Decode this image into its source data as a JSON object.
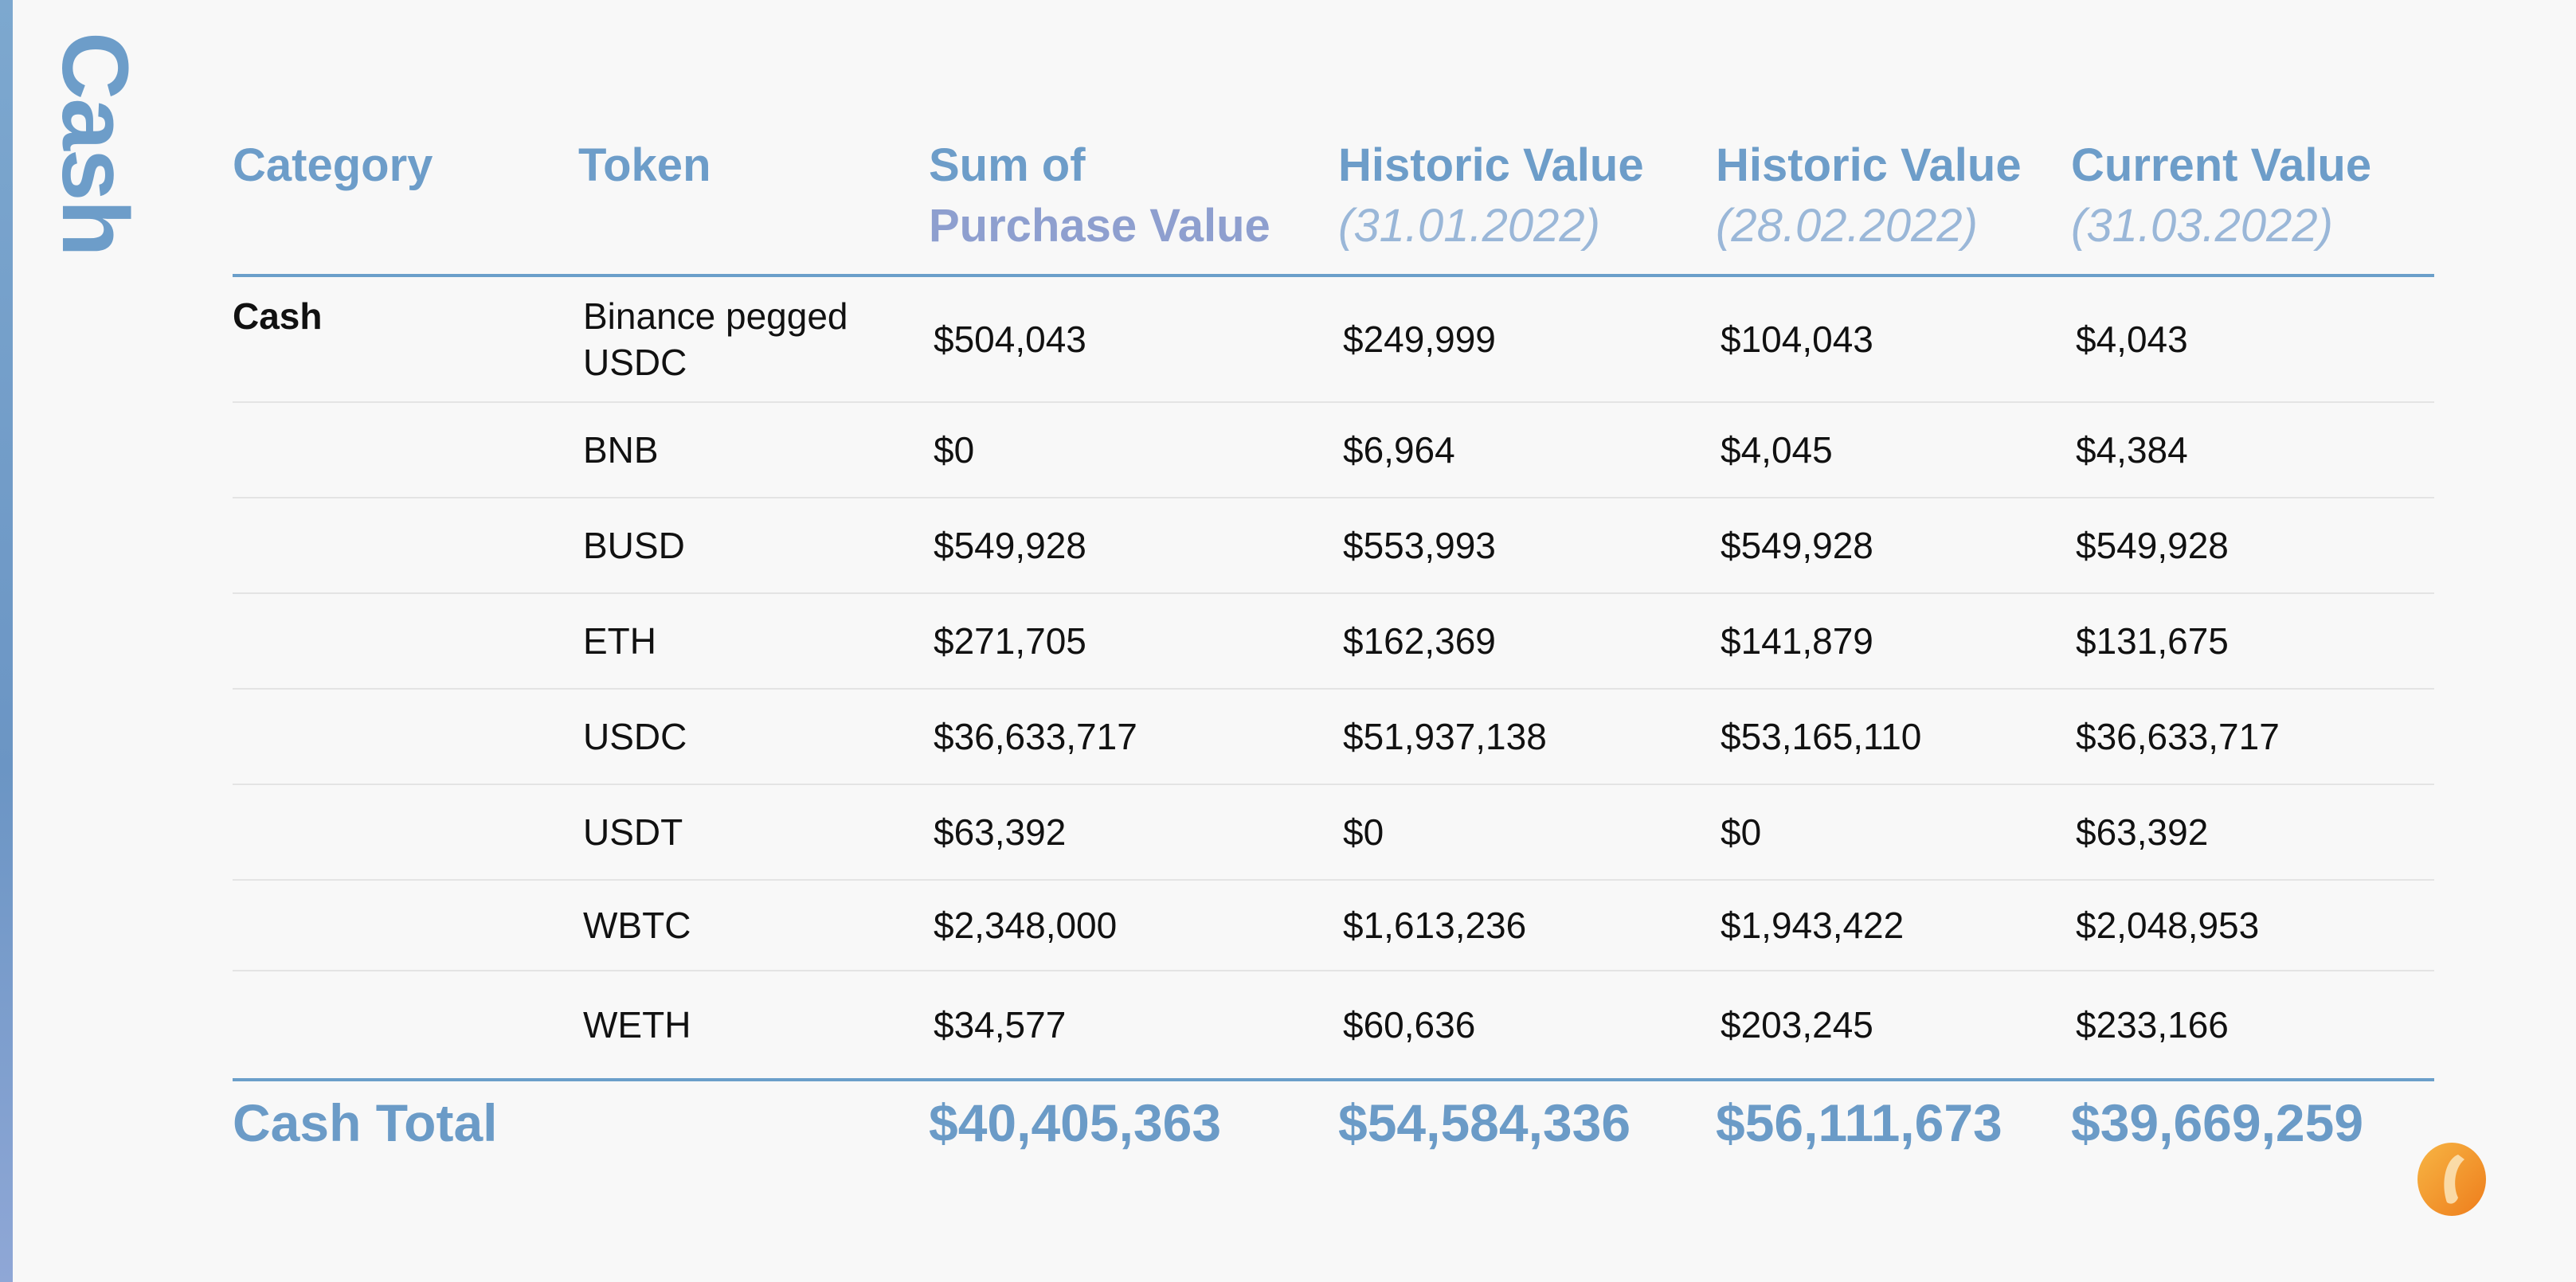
{
  "side_title": "Cash",
  "headers": {
    "category": "Category",
    "token": "Token",
    "purchase_line1": "Sum of",
    "purchase_line2": "Purchase Value",
    "hist1_title": "Historic Value",
    "hist1_date": "(31.01.2022)",
    "hist2_title": "Historic Value",
    "hist2_date": "(28.02.2022)",
    "current_title": "Current Value",
    "current_date": "(31.03.2022)"
  },
  "rows": [
    {
      "category": "Cash",
      "token": "Binance pegged USDC",
      "purchase": "$504,043",
      "hist1": "$249,999",
      "hist2": "$104,043",
      "current": "$4,043"
    },
    {
      "category": "",
      "token": "BNB",
      "purchase": "$0",
      "hist1": "$6,964",
      "hist2": "$4,045",
      "current": "$4,384"
    },
    {
      "category": "",
      "token": "BUSD",
      "purchase": "$549,928",
      "hist1": "$553,993",
      "hist2": "$549,928",
      "current": "$549,928"
    },
    {
      "category": "",
      "token": "ETH",
      "purchase": "$271,705",
      "hist1": "$162,369",
      "hist2": "$141,879",
      "current": "$131,675"
    },
    {
      "category": "",
      "token": "USDC",
      "purchase": "$36,633,717",
      "hist1": "$51,937,138",
      "hist2": "$53,165,110",
      "current": "$36,633,717"
    },
    {
      "category": "",
      "token": "USDT",
      "purchase": "$63,392",
      "hist1": "$0",
      "hist2": "$0",
      "current": "$63,392"
    },
    {
      "category": "",
      "token": "WBTC",
      "purchase": "$2,348,000",
      "hist1": "$1,613,236",
      "hist2": "$1,943,422",
      "current": "$2,048,953"
    },
    {
      "category": "",
      "token": "WETH",
      "purchase": "$34,577",
      "hist1": "$60,636",
      "hist2": "$203,245",
      "current": "$233,166"
    }
  ],
  "total": {
    "label": "Cash Total",
    "purchase": "$40,405,363",
    "hist1": "$54,584,336",
    "hist2": "$56,111,673",
    "current": "$39,669,259"
  },
  "colors": {
    "accent": "#6d9dc9",
    "accent_light": "#9ab7d8",
    "logo_orange": "#f39a2e"
  },
  "logo_icon": "orange-ring-logo-icon"
}
